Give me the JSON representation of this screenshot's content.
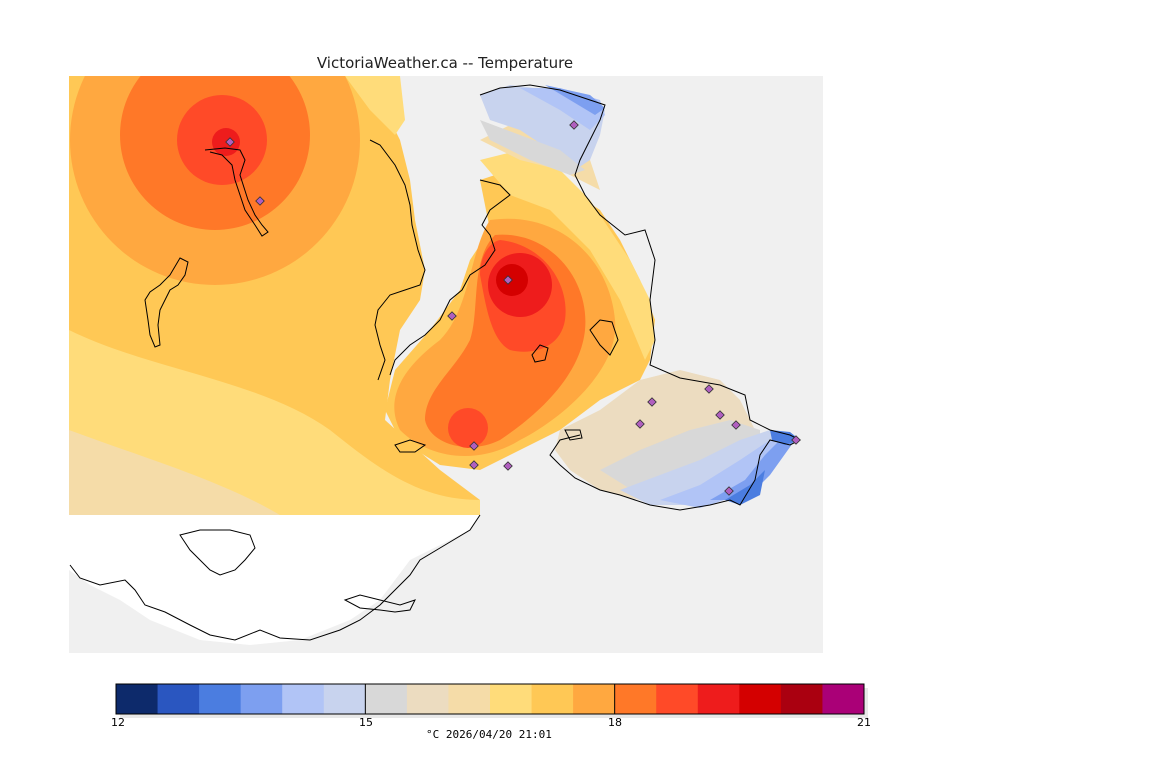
{
  "title": "VictoriaWeather.ca -- Temperature",
  "colorbar": {
    "min_label": "12",
    "mid1_label": "15",
    "mid2_label": "18",
    "max_label": "21",
    "colors": [
      "#0d2a6b",
      "#2a56c0",
      "#4b7de0",
      "#7d9ff0",
      "#b1c4f6",
      "#c8d3ee",
      "#d8d8d8",
      "#ecdcc0",
      "#f5dca8",
      "#ffdc7a",
      "#ffc855",
      "#ffa840",
      "#ff7828",
      "#ff4a28",
      "#ee1c1c",
      "#d40000",
      "#aa0010",
      "#aa0077"
    ]
  },
  "caption": "°C  2026/04/20 21:01",
  "colors": {
    "water": "#f0f0f0",
    "land_unmodeled": "#ffffff",
    "coast": "#000000"
  }
}
